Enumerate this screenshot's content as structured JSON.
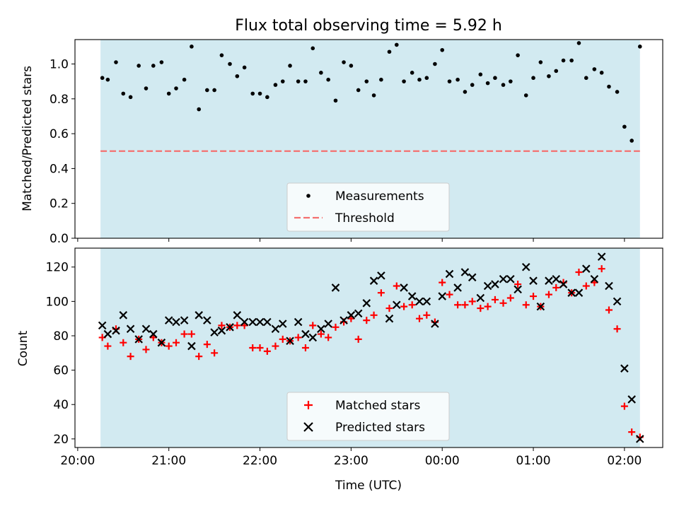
{
  "title": "Flux total observing time = 5.92 h",
  "colors": {
    "shade": "#add8e6",
    "threshold": "#f47070",
    "matched": "#ff0000",
    "predicted": "#000000",
    "measurements": "#000000"
  },
  "chart_data": [
    {
      "type": "scatter",
      "ylabel": "Matched/Predicted stars",
      "ylim": [
        0,
        1.14
      ],
      "yticks": [
        "0.0",
        "0.2",
        "0.4",
        "0.6",
        "0.8",
        "1.0"
      ],
      "xlim_hours": [
        19.97,
        26.42
      ],
      "legend": {
        "placement": "lower center",
        "entries": [
          "Measurements",
          "Threshold"
        ]
      },
      "shaded_span_hours": [
        20.25,
        26.17
      ],
      "threshold": 0.5,
      "series": [
        {
          "name": "Measurements",
          "x_hours": [
            20.27,
            20.33,
            20.42,
            20.5,
            20.58,
            20.67,
            20.75,
            20.83,
            20.92,
            21.0,
            21.08,
            21.17,
            21.25,
            21.33,
            21.42,
            21.5,
            21.58,
            21.67,
            21.75,
            21.83,
            21.92,
            22.0,
            22.08,
            22.17,
            22.25,
            22.33,
            22.42,
            22.5,
            22.58,
            22.67,
            22.75,
            22.83,
            22.92,
            23.0,
            23.08,
            23.17,
            23.25,
            23.33,
            23.42,
            23.5,
            23.58,
            23.67,
            23.75,
            23.83,
            23.92,
            24.0,
            24.08,
            24.17,
            24.25,
            24.33,
            24.42,
            24.5,
            24.58,
            24.67,
            24.75,
            24.83,
            24.92,
            25.0,
            25.08,
            25.17,
            25.25,
            25.33,
            25.42,
            25.5,
            25.58,
            25.67,
            25.75,
            25.83,
            25.92,
            26.0,
            26.08,
            26.17
          ],
          "values": [
            0.92,
            0.91,
            1.01,
            0.83,
            0.81,
            0.99,
            0.86,
            0.99,
            1.01,
            0.83,
            0.86,
            0.91,
            1.1,
            0.74,
            0.85,
            0.85,
            1.05,
            1.0,
            0.93,
            0.98,
            0.83,
            0.83,
            0.81,
            0.88,
            0.9,
            0.99,
            0.9,
            0.9,
            1.09,
            0.95,
            0.91,
            0.79,
            1.01,
            0.99,
            0.85,
            0.9,
            0.82,
            0.91,
            1.07,
            1.11,
            0.9,
            0.95,
            0.91,
            0.92,
            1.0,
            1.08,
            0.9,
            0.91,
            0.84,
            0.88,
            0.94,
            0.89,
            0.92,
            0.88,
            0.9,
            1.05,
            0.82,
            0.92,
            1.01,
            0.93,
            0.96,
            1.02,
            1.02,
            1.12,
            0.92,
            0.97,
            0.95,
            0.87,
            0.84,
            0.64,
            0.56,
            1.1
          ]
        }
      ]
    },
    {
      "type": "scatter",
      "xlabel": "Time (UTC)",
      "ylabel": "Count",
      "ylim": [
        15,
        131
      ],
      "yticks": [
        "20",
        "40",
        "60",
        "80",
        "100",
        "120"
      ],
      "xlim_hours": [
        19.97,
        26.42
      ],
      "xticks": [
        "20:00",
        "21:00",
        "22:00",
        "23:00",
        "00:00",
        "01:00",
        "02:00"
      ],
      "legend": {
        "placement": "lower center",
        "entries": [
          "Matched stars",
          "Predicted stars"
        ]
      },
      "shaded_span_hours": [
        20.25,
        26.17
      ],
      "series": [
        {
          "name": "Matched stars",
          "x_hours": [
            20.27,
            20.33,
            20.42,
            20.5,
            20.58,
            20.67,
            20.75,
            20.83,
            20.92,
            21.0,
            21.08,
            21.17,
            21.25,
            21.33,
            21.42,
            21.5,
            21.58,
            21.67,
            21.75,
            21.83,
            21.92,
            22.0,
            22.08,
            22.17,
            22.25,
            22.33,
            22.42,
            22.5,
            22.58,
            22.67,
            22.75,
            22.83,
            22.92,
            23.0,
            23.08,
            23.17,
            23.25,
            23.33,
            23.42,
            23.5,
            23.58,
            23.67,
            23.75,
            23.83,
            23.92,
            24.0,
            24.08,
            24.17,
            24.25,
            24.33,
            24.42,
            24.5,
            24.58,
            24.67,
            24.75,
            24.83,
            24.92,
            25.0,
            25.08,
            25.17,
            25.25,
            25.33,
            25.42,
            25.5,
            25.58,
            25.67,
            25.75,
            25.83,
            25.92,
            26.0,
            26.08,
            26.17
          ],
          "values": [
            79,
            74,
            84,
            76,
            68,
            78,
            72,
            79,
            76,
            74,
            76,
            81,
            81,
            68,
            75,
            70,
            86,
            85,
            86,
            86,
            73,
            73,
            71,
            74,
            78,
            77,
            79,
            73,
            86,
            81,
            79,
            85,
            88,
            90,
            78,
            89,
            92,
            105,
            96,
            109,
            97,
            98,
            90,
            92,
            88,
            111,
            104,
            98,
            98,
            100,
            96,
            97,
            101,
            99,
            102,
            110,
            98,
            103,
            97,
            104,
            108,
            111,
            105,
            117,
            109,
            111,
            119,
            95,
            84,
            39,
            24,
            21
          ]
        },
        {
          "name": "Predicted stars",
          "x_hours": [
            20.27,
            20.33,
            20.42,
            20.5,
            20.58,
            20.67,
            20.75,
            20.83,
            20.92,
            21.0,
            21.08,
            21.17,
            21.25,
            21.33,
            21.42,
            21.5,
            21.58,
            21.67,
            21.75,
            21.83,
            21.92,
            22.0,
            22.08,
            22.17,
            22.25,
            22.33,
            22.42,
            22.5,
            22.58,
            22.67,
            22.75,
            22.83,
            22.92,
            23.0,
            23.08,
            23.17,
            23.25,
            23.33,
            23.42,
            23.5,
            23.58,
            23.67,
            23.75,
            23.83,
            23.92,
            24.0,
            24.08,
            24.17,
            24.25,
            24.33,
            24.42,
            24.5,
            24.58,
            24.67,
            24.75,
            24.83,
            24.92,
            25.0,
            25.08,
            25.17,
            25.25,
            25.33,
            25.42,
            25.5,
            25.58,
            25.67,
            25.75,
            25.83,
            25.92,
            26.0,
            26.08,
            26.17
          ],
          "values": [
            86,
            81,
            83,
            92,
            84,
            78,
            84,
            81,
            76,
            89,
            88,
            89,
            74,
            92,
            89,
            82,
            83,
            85,
            92,
            88,
            88,
            88,
            88,
            84,
            87,
            77,
            88,
            81,
            79,
            84,
            87,
            108,
            89,
            92,
            93,
            99,
            112,
            115,
            90,
            98,
            108,
            103,
            100,
            100,
            87,
            103,
            116,
            108,
            117,
            114,
            102,
            109,
            110,
            113,
            113,
            107,
            120,
            112,
            97,
            112,
            113,
            110,
            105,
            105,
            119,
            113,
            126,
            109,
            100,
            61,
            43,
            20
          ]
        }
      ]
    }
  ]
}
